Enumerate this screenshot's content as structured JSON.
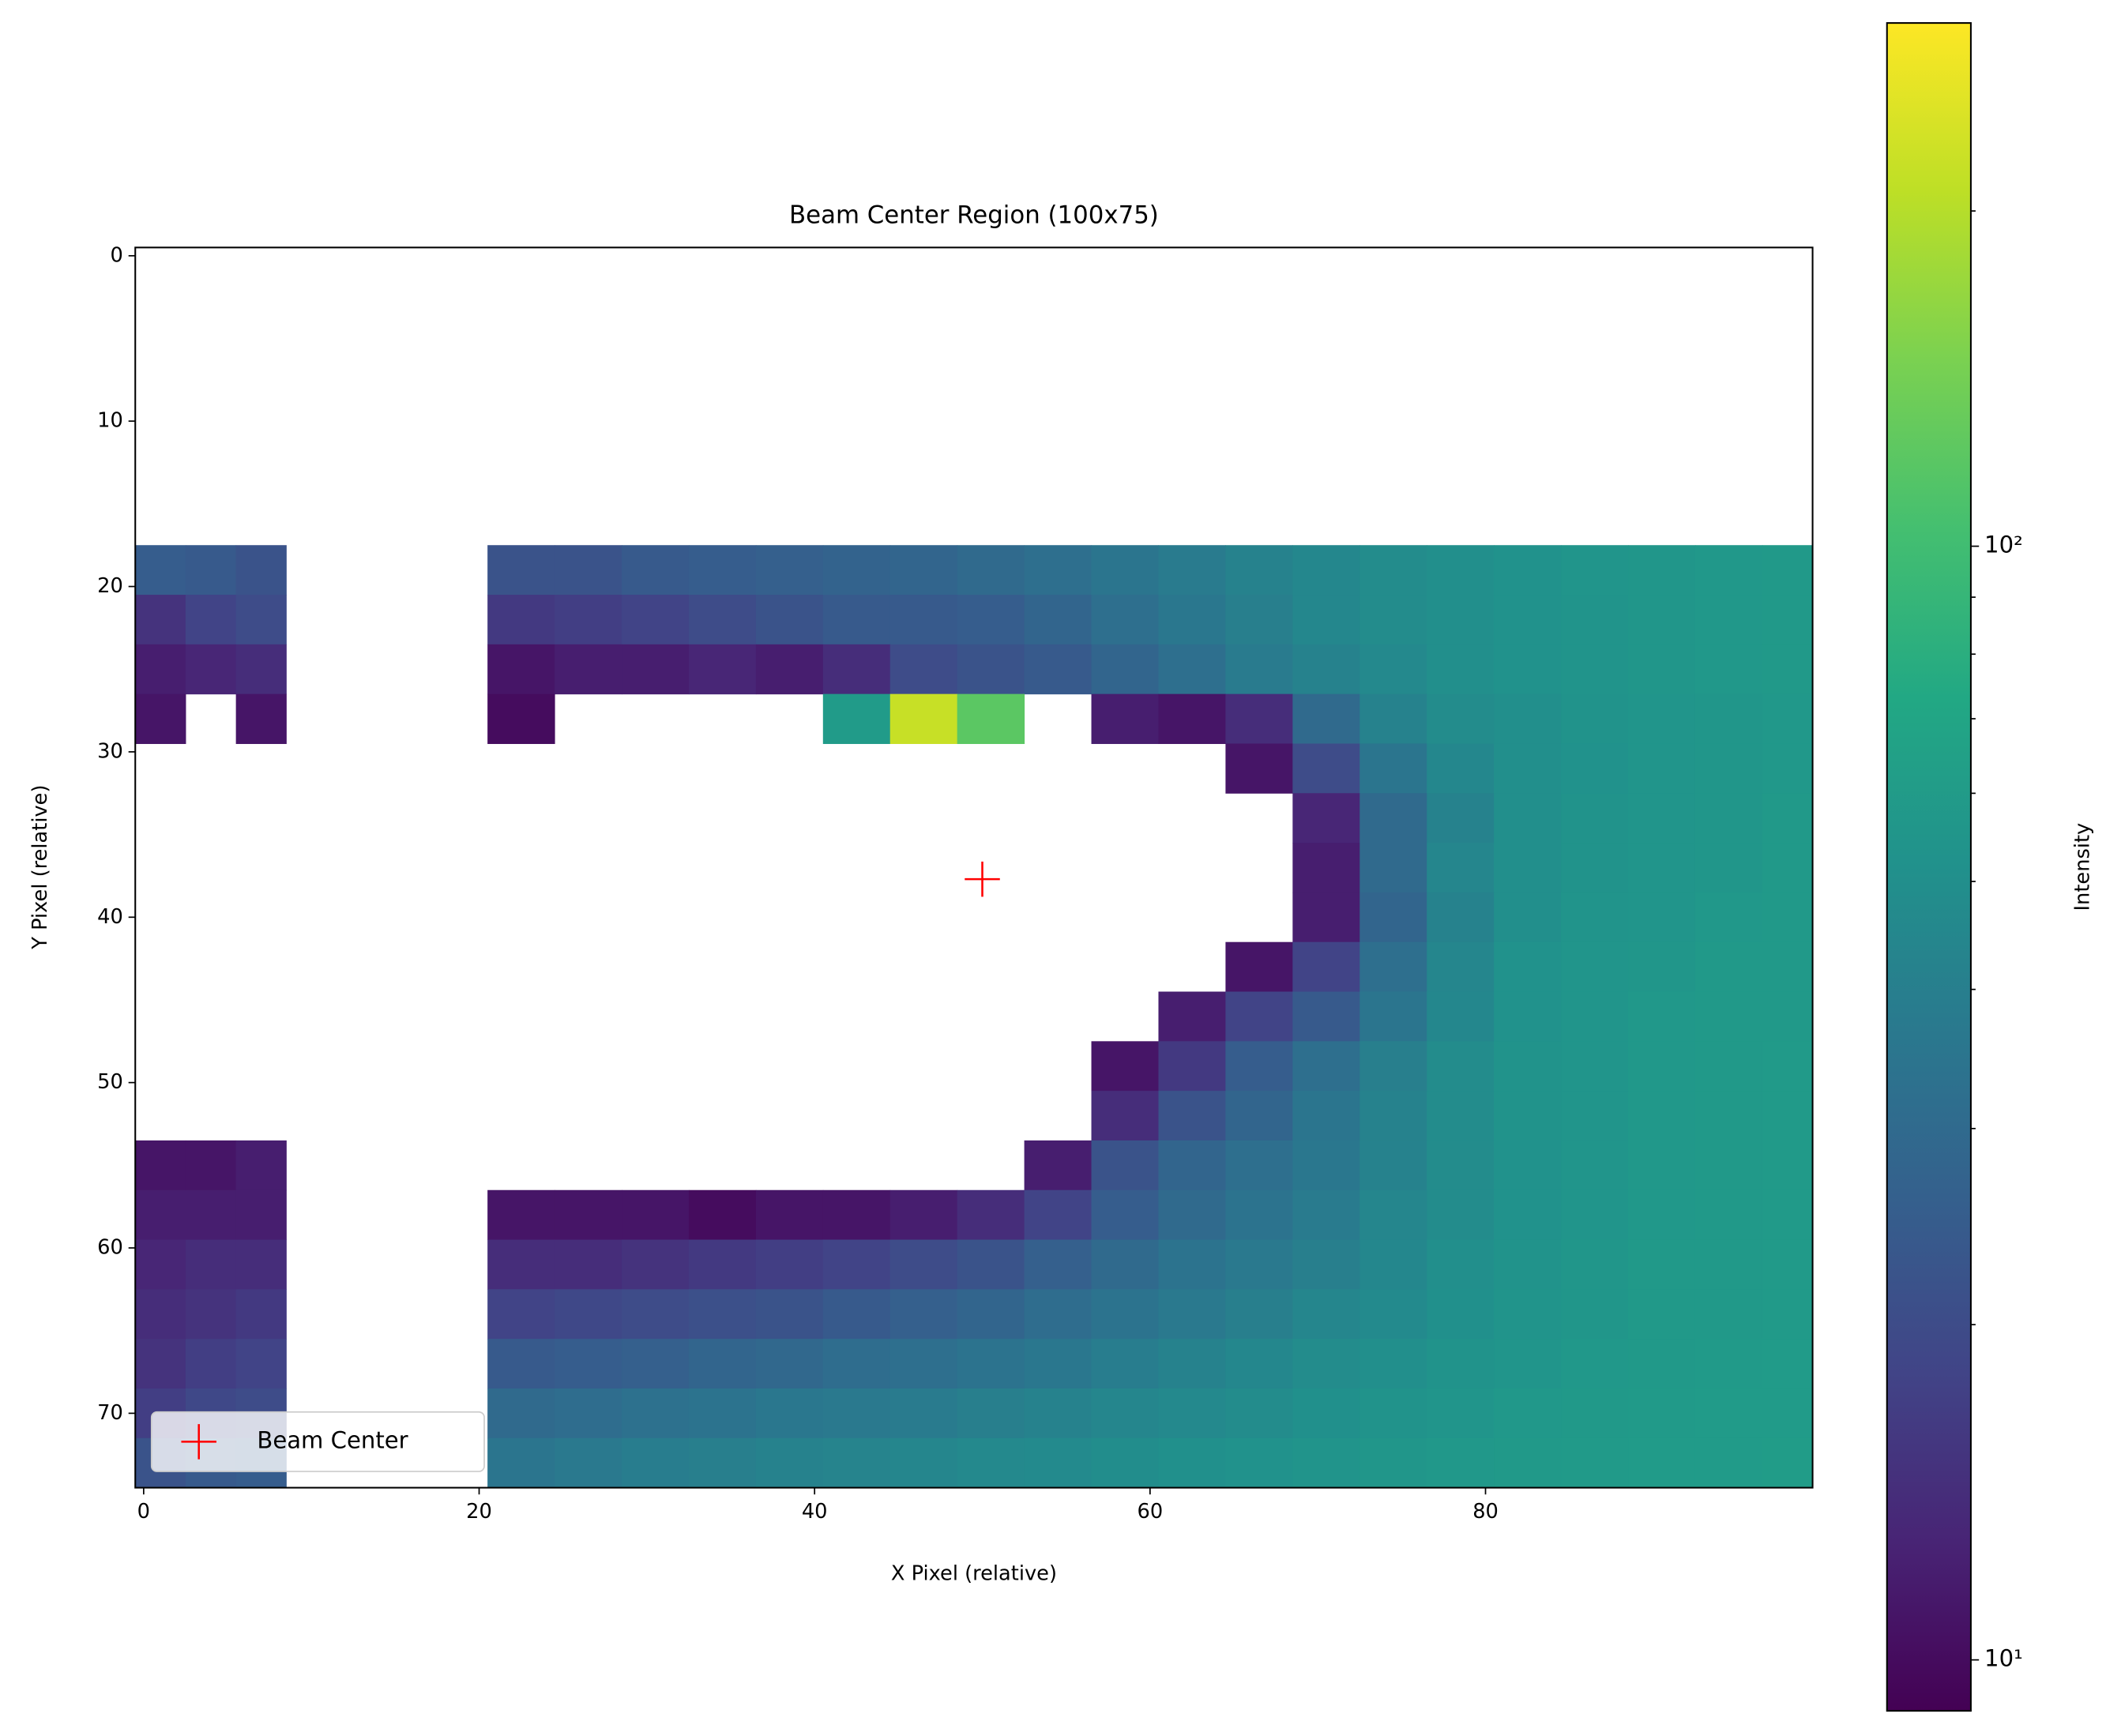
{
  "chart_data": {
    "type": "heatmap",
    "title": "Beam Center Region (100x75)",
    "xlabel": "X Pixel (relative)",
    "ylabel": "Y Pixel (relative)",
    "xlim": [
      -0.5,
      99.5
    ],
    "ylim": [
      74.5,
      -0.5
    ],
    "xticks": [
      0,
      20,
      40,
      60,
      80
    ],
    "yticks": [
      0,
      10,
      20,
      30,
      40,
      50,
      60,
      70
    ],
    "xbins": [
      -0.5,
      2.5,
      5.5,
      8.5,
      20.5,
      24.5,
      28.5,
      32.5,
      36.5,
      40.5,
      44.5,
      48.5,
      52.5,
      56.5,
      60.5,
      64.5,
      68.5,
      72.5,
      76.5,
      80.5,
      84.5,
      88.5,
      92.5,
      96.5,
      99.5
    ],
    "ybins": [
      -0.5,
      17.5,
      20.5,
      23.5,
      26.5,
      29.5,
      32.5,
      35.5,
      38.5,
      41.5,
      44.5,
      47.5,
      50.5,
      53.5,
      56.5,
      59.5,
      62.5,
      65.5,
      68.5,
      71.5,
      74.5
    ],
    "z": [
      [
        null,
        null,
        null,
        null,
        null,
        null,
        null,
        null,
        null,
        null,
        null,
        null,
        null,
        null,
        null,
        null,
        null,
        null,
        null,
        null,
        null,
        null,
        null,
        null
      ],
      [
        25,
        24,
        22,
        null,
        22,
        22,
        24,
        25,
        26,
        27,
        28,
        30,
        32,
        35,
        38,
        42,
        45,
        48,
        50,
        52,
        55,
        56,
        57,
        58
      ],
      [
        15,
        18,
        20,
        null,
        16,
        17,
        18,
        20,
        22,
        24,
        24,
        25,
        28,
        32,
        36,
        40,
        45,
        48,
        50,
        52,
        54,
        56,
        57,
        58
      ],
      [
        12,
        13,
        14,
        null,
        11,
        12,
        12,
        13,
        12,
        14,
        20,
        22,
        24,
        28,
        32,
        38,
        42,
        46,
        50,
        52,
        54,
        56,
        57,
        58
      ],
      [
        11,
        null,
        11,
        null,
        10,
        null,
        null,
        null,
        null,
        60,
        220,
        120,
        null,
        12,
        11,
        14,
        30,
        42,
        48,
        50,
        53,
        55,
        56,
        57
      ],
      [
        null,
        null,
        null,
        null,
        null,
        null,
        null,
        null,
        null,
        null,
        null,
        null,
        null,
        null,
        null,
        11,
        20,
        35,
        45,
        50,
        52,
        55,
        56,
        57
      ],
      [
        null,
        null,
        null,
        null,
        null,
        null,
        null,
        null,
        null,
        null,
        null,
        null,
        null,
        null,
        null,
        null,
        13,
        30,
        42,
        50,
        53,
        55,
        56,
        58
      ],
      [
        null,
        null,
        null,
        null,
        null,
        null,
        null,
        null,
        null,
        null,
        null,
        null,
        null,
        null,
        null,
        null,
        12,
        30,
        44,
        50,
        53,
        55,
        56,
        58
      ],
      [
        null,
        null,
        null,
        null,
        null,
        null,
        null,
        null,
        null,
        null,
        null,
        null,
        null,
        null,
        null,
        null,
        12,
        28,
        42,
        50,
        54,
        55,
        57,
        58
      ],
      [
        null,
        null,
        null,
        null,
        null,
        null,
        null,
        null,
        null,
        null,
        null,
        null,
        null,
        null,
        null,
        11,
        18,
        32,
        44,
        52,
        55,
        56,
        58,
        58
      ],
      [
        null,
        null,
        null,
        null,
        null,
        null,
        null,
        null,
        null,
        null,
        null,
        null,
        null,
        null,
        12,
        18,
        24,
        35,
        45,
        52,
        55,
        57,
        58,
        58
      ],
      [
        null,
        null,
        null,
        null,
        null,
        null,
        null,
        null,
        null,
        null,
        null,
        null,
        null,
        11,
        16,
        25,
        32,
        40,
        48,
        53,
        55,
        57,
        58,
        59
      ],
      [
        null,
        null,
        null,
        null,
        null,
        null,
        null,
        null,
        null,
        null,
        null,
        null,
        null,
        14,
        22,
        28,
        35,
        42,
        48,
        53,
        55,
        57,
        58,
        59
      ],
      [
        11,
        11,
        12,
        null,
        null,
        null,
        null,
        null,
        null,
        null,
        null,
        null,
        12,
        22,
        28,
        32,
        36,
        42,
        48,
        52,
        55,
        57,
        58,
        59
      ],
      [
        12,
        12,
        12,
        null,
        11,
        11,
        11,
        10,
        11,
        11,
        12,
        14,
        18,
        25,
        30,
        34,
        38,
        44,
        48,
        52,
        55,
        57,
        58,
        59
      ],
      [
        13,
        14,
        14,
        null,
        14,
        14,
        15,
        16,
        17,
        18,
        20,
        22,
        26,
        30,
        34,
        37,
        40,
        45,
        50,
        53,
        56,
        58,
        58,
        59
      ],
      [
        14,
        15,
        16,
        null,
        18,
        19,
        20,
        21,
        22,
        24,
        26,
        28,
        31,
        34,
        37,
        40,
        44,
        47,
        51,
        54,
        56,
        58,
        58,
        59
      ],
      [
        15,
        17,
        18,
        null,
        24,
        25,
        26,
        28,
        29,
        31,
        32,
        34,
        36,
        39,
        42,
        45,
        48,
        50,
        53,
        55,
        57,
        58,
        59,
        60
      ],
      [
        17,
        19,
        20,
        null,
        30,
        31,
        33,
        34,
        36,
        37,
        38,
        40,
        42,
        44,
        46,
        48,
        51,
        53,
        55,
        57,
        58,
        59,
        60,
        60
      ],
      [
        22,
        24,
        25,
        null,
        35,
        37,
        39,
        40,
        42,
        43,
        44,
        46,
        47,
        49,
        51,
        52,
        54,
        56,
        57,
        58,
        59,
        60,
        60,
        61
      ]
    ],
    "colorbar": {
      "label": "Intensity",
      "scale": "log",
      "colormap": "viridis",
      "lim": [
        9,
        295
      ],
      "ticks": [
        {
          "value": 10,
          "label": "10¹"
        },
        {
          "value": 100,
          "label": "10²"
        }
      ],
      "minor_ticks": [
        20,
        30,
        40,
        50,
        60,
        70,
        80,
        90,
        200
      ]
    },
    "overlay": {
      "type": "scatter",
      "name": "Beam Center",
      "x": [
        50
      ],
      "y": [
        37.7
      ],
      "color": "#ff0000",
      "marker": "+"
    },
    "legend": "lower left"
  }
}
